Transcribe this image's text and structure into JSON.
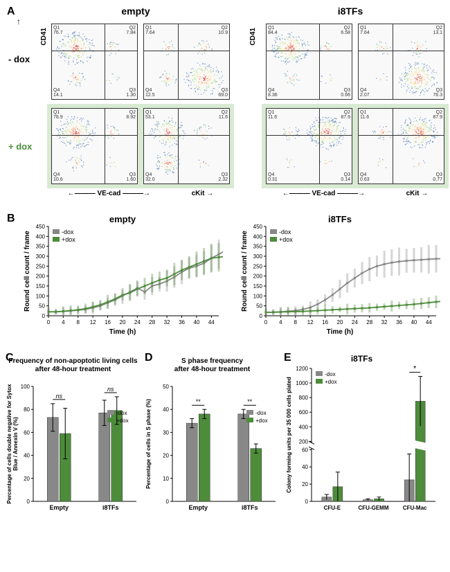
{
  "panelA": {
    "label": "A",
    "groups": [
      {
        "title": "empty",
        "xAxis1": "VE-cad",
        "xAxis2": "cKit"
      },
      {
        "title": "i8TFs",
        "xAxis1": "VE-cad",
        "xAxis2": "cKit"
      }
    ],
    "yAxis": "CD41",
    "conditions": [
      "- dox",
      "+ dox"
    ],
    "color_condition_plus": "#d9ead3",
    "plots": {
      "empty_minus": [
        {
          "q1": "Q1\n76.7",
          "q1v": 76.7,
          "q2": "Q2\n7.84",
          "q2v": 7.84,
          "q3": "Q3\n1.30",
          "q3v": 1.3,
          "q4": "Q4\n14.1",
          "q4v": 14.1,
          "hx": 62,
          "vy": 35
        },
        {
          "q1": "Q1\n7.64",
          "q1v": 7.64,
          "q2": "Q2\n10.9",
          "q2v": 10.9,
          "q3": "Q3\n69.0",
          "q3v": 69.0,
          "q4": "Q4\n12.5",
          "q4v": 12.5,
          "hx": 40,
          "vy": 35
        }
      ],
      "empty_plus": [
        {
          "q1": "Q1\n78.9",
          "q1v": 78.9,
          "q2": "Q2\n8.92",
          "q2v": 8.92,
          "q3": "Q3\n1.60",
          "q3v": 1.6,
          "q4": "Q4\n10.6",
          "q4v": 10.6,
          "hx": 62,
          "vy": 35
        },
        {
          "q1": "Q1\n53.1",
          "q1v": 53.1,
          "q2": "Q2\n11.6",
          "q2v": 11.6,
          "q3": "Q3\n2.32",
          "q3v": 2.32,
          "q4": "Q4\n32.0",
          "q4v": 32.0,
          "hx": 40,
          "vy": 35
        }
      ],
      "i8_minus": [
        {
          "q1": "Q1\n84.4",
          "q1v": 84.4,
          "q2": "Q2\n6.58",
          "q2v": 6.58,
          "q3": "Q3\n0.66",
          "q3v": 0.66,
          "q4": "Q4\n8.36",
          "q4v": 8.36,
          "hx": 62,
          "vy": 35
        },
        {
          "q1": "Q1\n7.64",
          "q1v": 7.64,
          "q2": "Q2\n13.1",
          "q2v": 13.1,
          "q3": "Q3\n76.3",
          "q3v": 76.3,
          "q4": "Q4\n2.07",
          "q4v": 2.07,
          "hx": 40,
          "vy": 35
        }
      ],
      "i8_plus": [
        {
          "q1": "Q1\n11.6",
          "q1v": 11.6,
          "q2": "Q2\n87.9",
          "q2v": 87.9,
          "q3": "Q3\n0.14",
          "q3v": 0.14,
          "q4": "Q4\n0.31",
          "q4v": 0.31,
          "hx": 62,
          "vy": 35
        },
        {
          "q1": "Q1\n11.6",
          "q1v": 11.6,
          "q2": "Q2\n87.9",
          "q2v": 87.9,
          "q3": "Q3\n0.77",
          "q3v": 0.77,
          "q4": "Q4\n0.63",
          "q4v": 0.63,
          "hx": 40,
          "vy": 35
        }
      ]
    }
  },
  "panelB": {
    "label": "B",
    "titles": [
      "empty",
      "i8TFs"
    ],
    "yLabel": "Round cell count / frame",
    "xLabel": "Time (h)",
    "xTicks": [
      0,
      4,
      8,
      12,
      16,
      20,
      24,
      28,
      32,
      36,
      40,
      44
    ],
    "yMax": 450,
    "yTicks": [
      0,
      50,
      100,
      150,
      200,
      250,
      300,
      350,
      400,
      450
    ],
    "series_colors": {
      "-dox": "#888888",
      "+dox": "#4d8c3b"
    },
    "legend": [
      "-dox",
      "+dox"
    ],
    "data": {
      "empty": {
        "minus": [
          20,
          20,
          22,
          25,
          28,
          32,
          40,
          50,
          65,
          80,
          100,
          120,
          140,
          120,
          150,
          160,
          175,
          195,
          220,
          240,
          250,
          265,
          290,
          310,
          330
        ],
        "plus": [
          20,
          20,
          23,
          26,
          30,
          36,
          45,
          55,
          70,
          85,
          105,
          115,
          135,
          150,
          165,
          180,
          190,
          210,
          230,
          245,
          260,
          275,
          290,
          295,
          300
        ]
      },
      "i8": {
        "minus": [
          18,
          18,
          20,
          23,
          26,
          32,
          42,
          58,
          80,
          105,
          135,
          165,
          190,
          215,
          235,
          250,
          260,
          268,
          273,
          277,
          280,
          282,
          285,
          287,
          288
        ],
        "plus": [
          18,
          18,
          19,
          20,
          21,
          22,
          24,
          26,
          28,
          30,
          32,
          34,
          36,
          38,
          40,
          43,
          46,
          49,
          52,
          55,
          58,
          62,
          66,
          70,
          74
        ]
      }
    }
  },
  "panelC": {
    "label": "C",
    "title": "Frequency of non-apoptotic living cells\nafter 48-hour treatment",
    "yLabel": "Percentage of cells double negative for Sytox\nBlue / Annexin V (%)",
    "groups": [
      "Empty",
      "i8TFs"
    ],
    "legend": [
      "-dox",
      "+dox"
    ],
    "colors": {
      "-dox": "#888888",
      "+dox": "#4d8c3b"
    },
    "yMax": 100,
    "yTicks": [
      0,
      20,
      40,
      60,
      80,
      100
    ],
    "values": {
      "-dox": [
        73,
        77
      ],
      "+dox": [
        59,
        79
      ]
    },
    "errors": {
      "-dox": [
        12,
        11
      ],
      "+dox": [
        22,
        12
      ]
    },
    "sig": [
      "ns",
      "ns"
    ]
  },
  "panelD": {
    "label": "D",
    "title": "S phase frequency\nafter 48-hour treatment",
    "yLabel": "Percentage of cells in S phase (%)",
    "groups": [
      "Empty",
      "i8TFs"
    ],
    "legend": [
      "-dox",
      "+dox"
    ],
    "colors": {
      "-dox": "#888888",
      "+dox": "#4d8c3b"
    },
    "yMax": 50,
    "yTicks": [
      0,
      10,
      20,
      30,
      40,
      50
    ],
    "values": {
      "-dox": [
        34,
        38
      ],
      "+dox": [
        38,
        23
      ]
    },
    "errors": {
      "-dox": [
        2,
        2
      ],
      "+dox": [
        2,
        2
      ]
    },
    "sig": [
      "**",
      "**"
    ]
  },
  "panelE": {
    "label": "E",
    "title": "i8TFs",
    "yLabel": "Colony forming units per 35 000 cells plated",
    "groups": [
      "CFU-E",
      "CFU-GEMM",
      "CFU-Mac"
    ],
    "legend": [
      "-dox",
      "+dox"
    ],
    "colors": {
      "-dox": "#888888",
      "+dox": "#4d8c3b"
    },
    "yMaxUpper": 1200,
    "yTicksUpper": [
      200,
      400,
      600,
      800,
      1000,
      1200
    ],
    "yMaxLower": 60,
    "yTicksLower": [
      0,
      20,
      40,
      60
    ],
    "breakAt": 60,
    "values": {
      "-dox": [
        5,
        2,
        25
      ],
      "+dox": [
        17,
        3,
        750
      ]
    },
    "errors": {
      "-dox": [
        3,
        1,
        30
      ],
      "+dox": [
        17,
        2,
        340
      ]
    },
    "sig": [
      "",
      "",
      "*"
    ]
  }
}
